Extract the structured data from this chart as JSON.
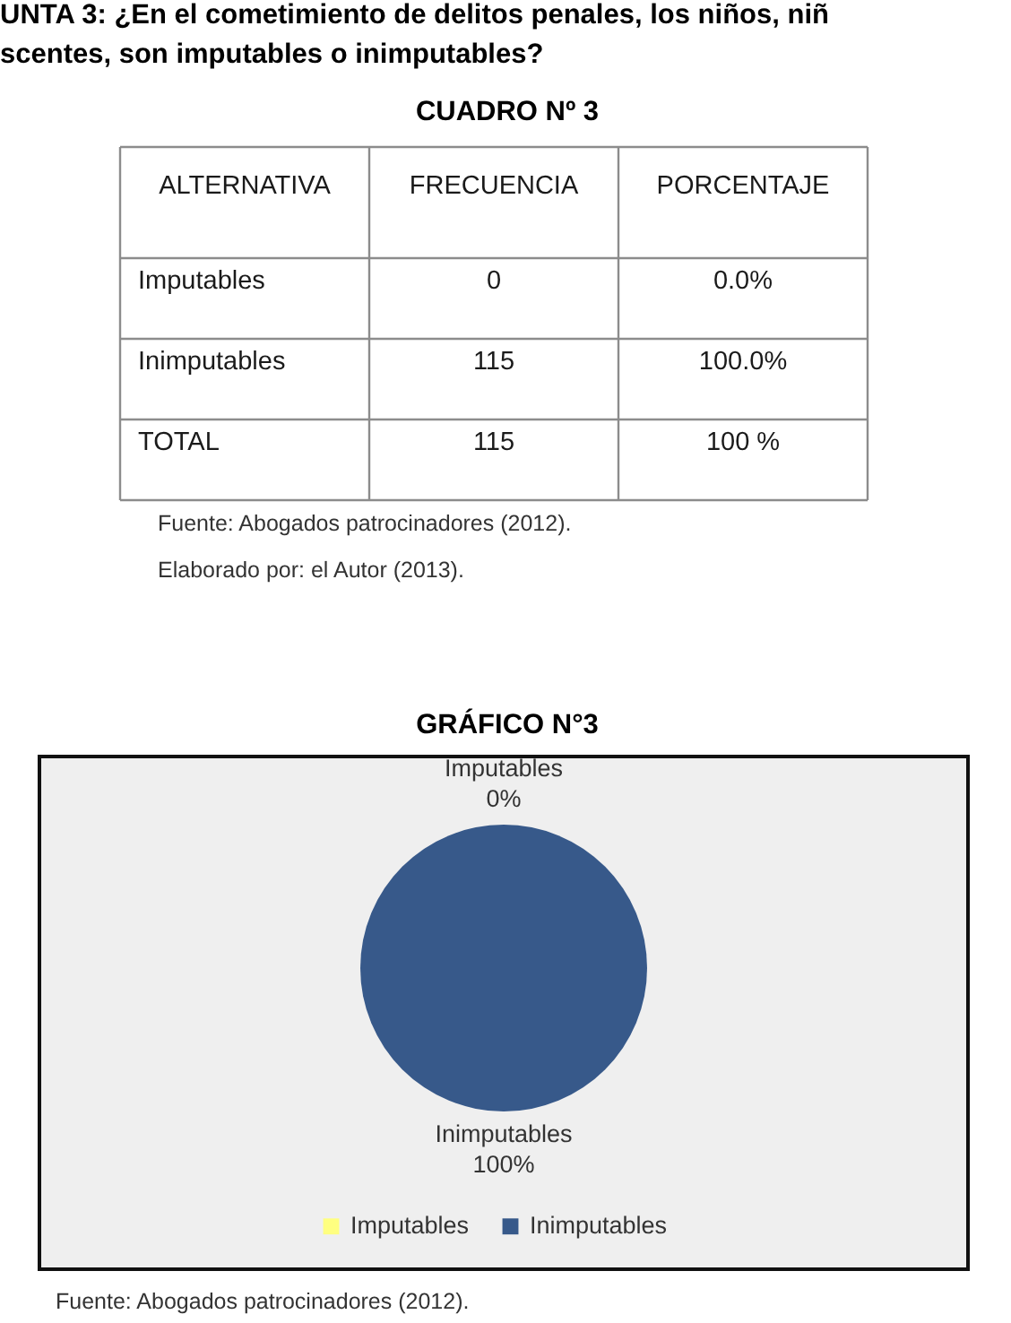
{
  "chart_data": [
    {
      "type": "other",
      "title": "UNTA 3: ¿En el cometimiento de delitos penales, los niños, niñ\nscentes, son imputables o inimputables?",
      "subtitle": "CUADRO Nº 3",
      "ylabel": "ALTERNATIVA",
      "categories": [
        "FRECUENCIA",
        "PORCENTAJE"
      ],
      "y_categories": [
        "Imputables",
        "Inimputables",
        "TOTAL"
      ],
      "cell_labels": [
        [
          "0",
          "0.0%"
        ],
        [
          "115",
          "100.0%"
        ],
        [
          "115",
          "100 %"
        ]
      ],
      "annotations": [
        "Fuente: Abogados patrocinadores (2012).",
        "Elaborado por: el Autor (2013)."
      ]
    },
    {
      "type": "pie",
      "title": "GRÁFICO N°3",
      "categories": [
        "Imputables",
        "Inimputables"
      ],
      "values": [
        0,
        100
      ],
      "colors": [
        "#ffff80",
        "#37598a"
      ],
      "value_labels": [
        "0%",
        "100%"
      ],
      "legend": "bottom",
      "annotations": [
        "Fuente: Abogados patrocinadores (2012)."
      ]
    }
  ]
}
